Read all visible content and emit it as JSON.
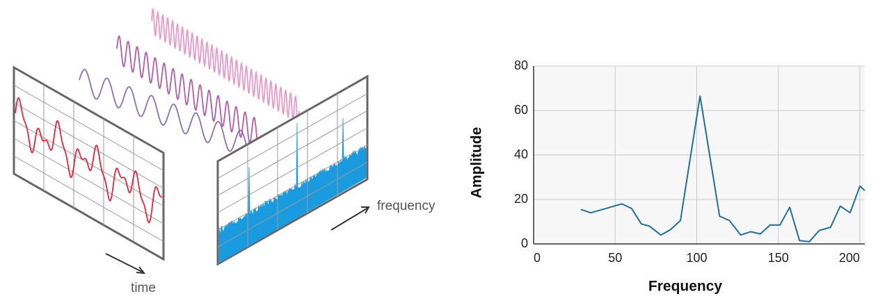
{
  "illustration": {
    "time_label": "time",
    "frequency_label": "frequency"
  },
  "chart_data": {
    "type": "line",
    "x_label": "Frequency",
    "y_label": "Amplitude",
    "x": [
      29,
      35,
      47,
      54,
      60,
      66,
      71,
      78,
      84,
      90,
      102,
      114,
      120,
      127,
      133,
      139,
      145,
      151,
      157,
      163,
      169,
      175,
      182,
      188,
      194,
      200,
      203
    ],
    "values": [
      15.5,
      14,
      16.5,
      18,
      16,
      9,
      8,
      4,
      6.5,
      10.5,
      66.5,
      12.5,
      10.5,
      4,
      5.5,
      4.5,
      8.5,
      8.5,
      16.5,
      1.5,
      1,
      6,
      7.5,
      17,
      14,
      26,
      24
    ],
    "color": "#1f6f99",
    "xlim": [
      0,
      203
    ],
    "ylim": [
      0,
      80
    ],
    "xticks": [
      0,
      50,
      100,
      150,
      200
    ],
    "yticks": [
      0,
      20,
      40,
      60,
      80
    ],
    "grid": true
  }
}
